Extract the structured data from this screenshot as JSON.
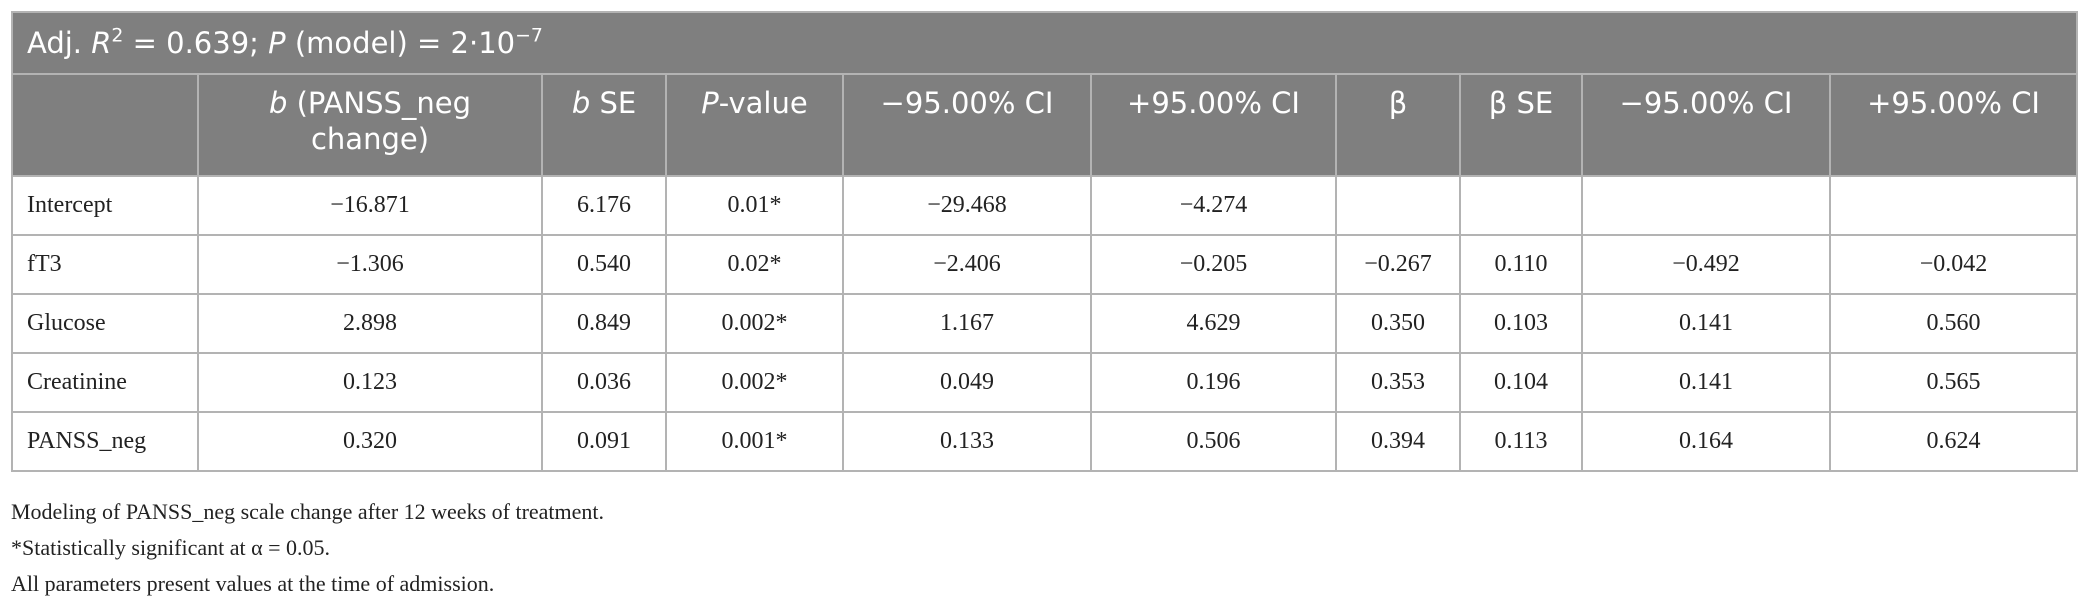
{
  "title": [
    "Adj. ",
    "R",
    "2",
    " = 0.639; ",
    "P",
    " (model) = 2·10",
    "−7"
  ],
  "table": {
    "header": [
      [
        {
          "text": ""
        }
      ],
      [
        {
          "text": "b",
          "italic": true
        },
        {
          "text": " (PANSS_neg change)"
        }
      ],
      [
        {
          "text": "b",
          "italic": true
        },
        {
          "text": " SE"
        }
      ],
      [
        {
          "text": "P",
          "italic": true
        },
        {
          "text": "-value"
        }
      ],
      [
        {
          "text": "−95.00% CI"
        }
      ],
      [
        {
          "text": "+95.00% CI"
        }
      ],
      [
        {
          "text": "β"
        }
      ],
      [
        {
          "text": "β SE"
        }
      ],
      [
        {
          "text": "−95.00% CI"
        }
      ],
      [
        {
          "text": "+95.00% CI"
        }
      ]
    ],
    "rows": [
      [
        "Intercept",
        "−16.871",
        "6.176",
        "0.01*",
        "−29.468",
        "−4.274",
        "",
        "",
        "",
        ""
      ],
      [
        "fT3",
        "−1.306",
        "0.540",
        "0.02*",
        "−2.406",
        "−0.205",
        "−0.267",
        "0.110",
        "−0.492",
        "−0.042"
      ],
      [
        "Glucose",
        "2.898",
        "0.849",
        "0.002*",
        "1.167",
        "4.629",
        "0.350",
        "0.103",
        "0.141",
        "0.560"
      ],
      [
        "Creatinine",
        "0.123",
        "0.036",
        "0.002*",
        "0.049",
        "0.196",
        "0.353",
        "0.104",
        "0.141",
        "0.565"
      ],
      [
        "PANSS_neg",
        "0.320",
        "0.091",
        "0.001*",
        "0.133",
        "0.506",
        "0.394",
        "0.113",
        "0.164",
        "0.624"
      ]
    ]
  },
  "notes": [
    "Modeling of PANSS_neg scale change after 12 weeks of treatment.",
    "*Statistically significant at α = 0.05.",
    "All parameters present values at the time of admission."
  ]
}
